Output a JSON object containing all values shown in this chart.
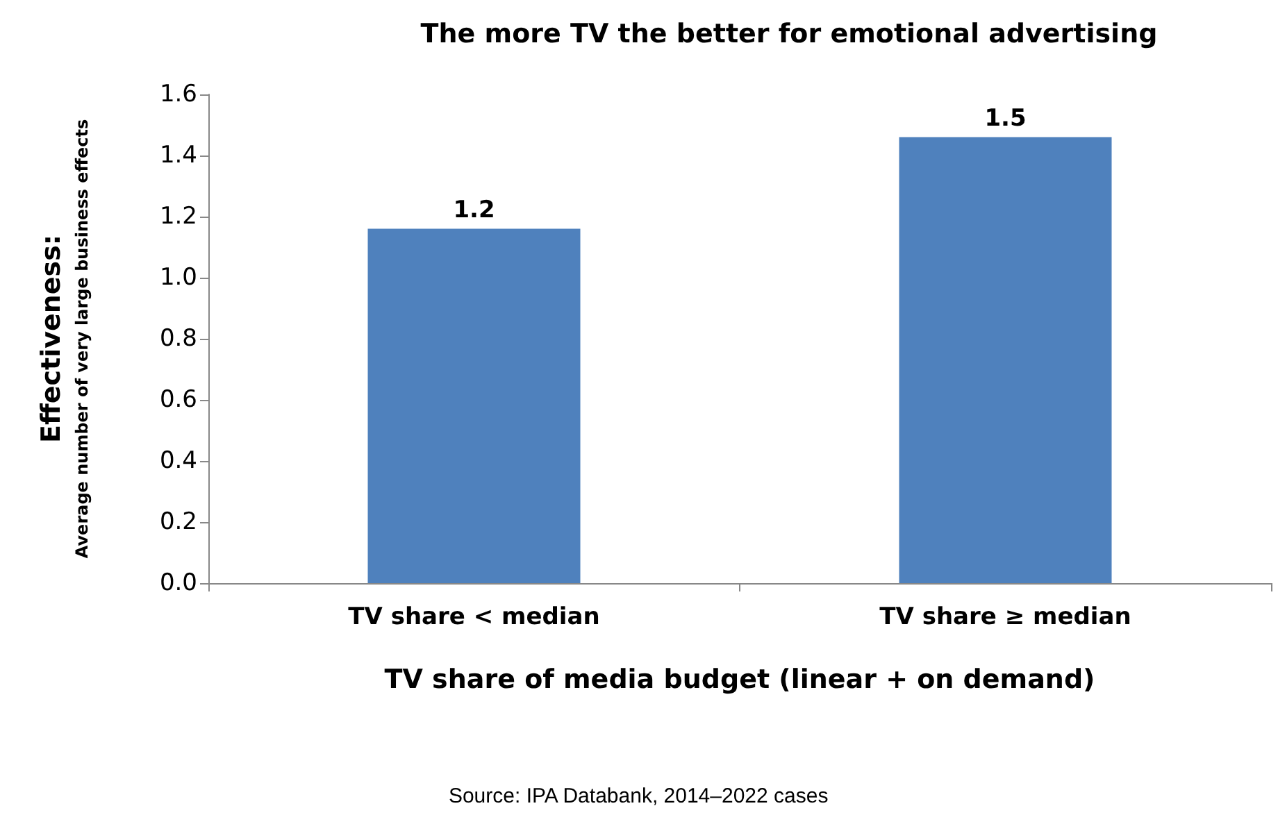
{
  "chart_data": {
    "type": "bar",
    "title": "The more TV the better for emotional advertising",
    "xlabel": "TV share of media budget (linear + on demand)",
    "ylabel": "Effectiveness:\nAverage number of very large business effects",
    "categories": [
      "TV share < median",
      "TV share ≥ median"
    ],
    "values": [
      1.16,
      1.46
    ],
    "value_labels": [
      "1.2",
      "1.5"
    ],
    "color": "#4f81bd",
    "ylim": [
      0,
      1.6
    ],
    "yticks": [
      "0.0",
      "0.2",
      "0.4",
      "0.6",
      "0.8",
      "1.0",
      "1.2",
      "1.4",
      "1.6"
    ],
    "grid": false,
    "annotations": [
      "Source: IPA Databank, 2014–2022 cases"
    ]
  }
}
